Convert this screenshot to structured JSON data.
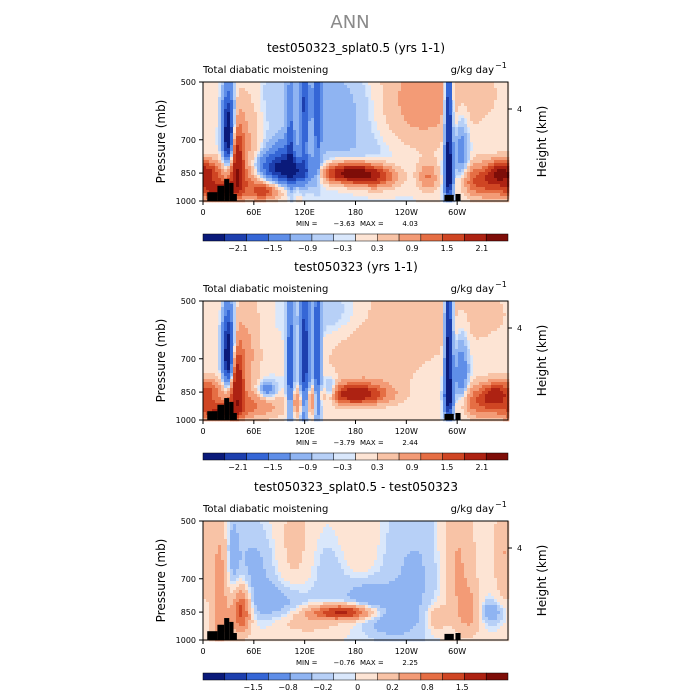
{
  "figure_title": "ANN",
  "chart_data": [
    {
      "type": "heatmap",
      "title": "test050323_splat0.5 (yrs 1-1)",
      "variable": "Total diabatic moistening",
      "units": "g/kg day",
      "units_exp": "−1",
      "ylabel": "Pressure (mb)",
      "y2label": "Height (km)",
      "y_ticks": [
        "500",
        "700",
        "850",
        "1000"
      ],
      "y2_ticks": [
        "4"
      ],
      "x_ticks": [
        "0",
        "60E",
        "120E",
        "180",
        "120W",
        "60W"
      ],
      "min_label": "MIN =",
      "min_value": "−3.63",
      "max_label": "MAX =",
      "max_value": "4.03",
      "colorbar_labels": [
        "−2.1",
        "−1.5",
        "−0.9",
        "−0.3",
        "0.3",
        "0.9",
        "1.5",
        "2.1"
      ],
      "colorbar_colors": [
        "#0a1a7a",
        "#1d3fae",
        "#3566d6",
        "#5f8ee8",
        "#8fb4f2",
        "#b7d0f7",
        "#d9e7fb",
        "#fde4d4",
        "#f8c3a6",
        "#f39b76",
        "#e56e44",
        "#cf4523",
        "#ad2212",
        "#7e0d08"
      ],
      "features": [
        {
          "lon": 105,
          "p": 845,
          "w": 20,
          "h": 45,
          "v": -2.4
        },
        {
          "lon": 290,
          "p": 640,
          "w": 3,
          "h": 220,
          "v": -2.9
        },
        {
          "lon": 290,
          "p": 870,
          "w": 4,
          "h": 70,
          "v": -2.0
        },
        {
          "lon": 175,
          "p": 850,
          "w": 25,
          "h": 35,
          "v": 2.9
        },
        {
          "lon": 40,
          "p": 790,
          "w": 6,
          "h": 120,
          "v": 2.1
        },
        {
          "lon": 17,
          "p": 940,
          "w": 16,
          "h": 40,
          "v": 1.7
        },
        {
          "lon": 330,
          "p": 890,
          "w": 22,
          "h": 60,
          "v": 1.5
        },
        {
          "lon": 72,
          "p": 950,
          "w": 10,
          "h": 30,
          "v": 1.1
        },
        {
          "lon": 350,
          "p": 850,
          "w": 10,
          "h": 40,
          "v": 1.6
        },
        {
          "lon": 245,
          "p": 620,
          "w": 40,
          "h": 140,
          "v": 0.7
        },
        {
          "lon": 60,
          "p": 900,
          "w": 30,
          "h": 60,
          "v": 0.8
        },
        {
          "lon": 30,
          "p": 630,
          "w": 5,
          "h": 90,
          "v": -2.5
        },
        {
          "lon": 30,
          "p": 720,
          "w": 4,
          "h": 60,
          "v": -1.8
        },
        {
          "lon": 120,
          "p": 580,
          "w": 3,
          "h": 160,
          "v": -1.6
        },
        {
          "lon": 135,
          "p": 600,
          "w": 3,
          "h": 160,
          "v": -1.4
        },
        {
          "lon": 103,
          "p": 720,
          "w": 3,
          "h": 140,
          "v": -1.3
        },
        {
          "lon": 95,
          "p": 780,
          "w": 12,
          "h": 60,
          "v": -1.2
        },
        {
          "lon": 75,
          "p": 820,
          "w": 12,
          "h": 50,
          "v": -0.9
        },
        {
          "lon": 205,
          "p": 880,
          "w": 18,
          "h": 40,
          "v": 1.0
        },
        {
          "lon": 8,
          "p": 840,
          "w": 10,
          "h": 40,
          "v": 1.2
        },
        {
          "lon": 265,
          "p": 870,
          "w": 8,
          "h": 50,
          "v": 0.9
        },
        {
          "lon": 305,
          "p": 770,
          "w": 6,
          "h": 120,
          "v": -1.0
        },
        {
          "lon": 250,
          "p": 540,
          "w": 80,
          "h": 100,
          "v": 0.4
        },
        {
          "lon": 160,
          "p": 540,
          "w": 60,
          "h": 80,
          "v": -0.5
        },
        {
          "lon": 200,
          "p": 700,
          "w": 60,
          "h": 130,
          "v": -0.5
        },
        {
          "lon": 55,
          "p": 720,
          "w": 10,
          "h": 160,
          "v": 0.5
        }
      ],
      "terrain": [
        {
          "lon0": 5,
          "lon1": 17,
          "p": 950
        },
        {
          "lon0": 17,
          "lon1": 25,
          "p": 915
        },
        {
          "lon0": 25,
          "lon1": 31,
          "p": 880
        },
        {
          "lon0": 31,
          "lon1": 36,
          "p": 900
        },
        {
          "lon0": 36,
          "lon1": 40,
          "p": 960
        },
        {
          "lon0": 285,
          "lon1": 296,
          "p": 965
        },
        {
          "lon0": 298,
          "lon1": 304,
          "p": 960
        }
      ]
    },
    {
      "type": "heatmap",
      "title": "test050323 (yrs 1-1)",
      "variable": "Total diabatic moistening",
      "units": "g/kg day",
      "units_exp": "−1",
      "ylabel": "Pressure (mb)",
      "y2label": "Height (km)",
      "y_ticks": [
        "500",
        "700",
        "850",
        "1000"
      ],
      "y2_ticks": [
        "4"
      ],
      "x_ticks": [
        "0",
        "60E",
        "120E",
        "180",
        "120W",
        "60W"
      ],
      "min_label": "MIN =",
      "min_value": "−3.79",
      "max_label": "MAX =",
      "max_value": "2.44",
      "colorbar_labels": [
        "−2.1",
        "−1.5",
        "−0.9",
        "−0.3",
        "0.3",
        "0.9",
        "1.5",
        "2.1"
      ],
      "colorbar_colors": [
        "#0a1a7a",
        "#1d3fae",
        "#3566d6",
        "#5f8ee8",
        "#8fb4f2",
        "#b7d0f7",
        "#d9e7fb",
        "#fde4d4",
        "#f8c3a6",
        "#f39b76",
        "#e56e44",
        "#cf4523",
        "#ad2212",
        "#7e0d08"
      ],
      "features": [
        {
          "lon": 120,
          "p": 700,
          "w": 4,
          "h": 200,
          "v": -2.3
        },
        {
          "lon": 135,
          "p": 700,
          "w": 3,
          "h": 200,
          "v": -2.0
        },
        {
          "lon": 103,
          "p": 720,
          "w": 3,
          "h": 180,
          "v": -1.8
        },
        {
          "lon": 290,
          "p": 640,
          "w": 3,
          "h": 220,
          "v": -3.0
        },
        {
          "lon": 290,
          "p": 880,
          "w": 4,
          "h": 60,
          "v": -2.0
        },
        {
          "lon": 180,
          "p": 860,
          "w": 25,
          "h": 35,
          "v": 2.2
        },
        {
          "lon": 40,
          "p": 800,
          "w": 6,
          "h": 120,
          "v": 2.2
        },
        {
          "lon": 17,
          "p": 950,
          "w": 16,
          "h": 40,
          "v": 1.6
        },
        {
          "lon": 330,
          "p": 900,
          "w": 22,
          "h": 60,
          "v": 1.3
        },
        {
          "lon": 30,
          "p": 630,
          "w": 5,
          "h": 90,
          "v": -2.6
        },
        {
          "lon": 30,
          "p": 730,
          "w": 4,
          "h": 60,
          "v": -1.8
        },
        {
          "lon": 150,
          "p": 845,
          "w": 6,
          "h": 40,
          "v": -1.2
        },
        {
          "lon": 75,
          "p": 840,
          "w": 8,
          "h": 30,
          "v": -1.0
        },
        {
          "lon": 250,
          "p": 540,
          "w": 90,
          "h": 100,
          "v": 0.4
        },
        {
          "lon": 200,
          "p": 700,
          "w": 40,
          "h": 140,
          "v": 0.4
        },
        {
          "lon": 160,
          "p": 540,
          "w": 40,
          "h": 70,
          "v": -0.5
        },
        {
          "lon": 55,
          "p": 700,
          "w": 10,
          "h": 160,
          "v": 0.5
        },
        {
          "lon": 8,
          "p": 840,
          "w": 10,
          "h": 40,
          "v": 1.1
        },
        {
          "lon": 60,
          "p": 920,
          "w": 25,
          "h": 50,
          "v": 0.8
        },
        {
          "lon": 345,
          "p": 860,
          "w": 10,
          "h": 40,
          "v": 1.4
        },
        {
          "lon": 305,
          "p": 770,
          "w": 6,
          "h": 120,
          "v": -1.1
        },
        {
          "lon": 112,
          "p": 900,
          "w": 5,
          "h": 50,
          "v": 0.9
        },
        {
          "lon": 128,
          "p": 910,
          "w": 5,
          "h": 50,
          "v": 0.9
        }
      ],
      "terrain": [
        {
          "lon0": 5,
          "lon1": 17,
          "p": 950
        },
        {
          "lon0": 17,
          "lon1": 25,
          "p": 915
        },
        {
          "lon0": 25,
          "lon1": 31,
          "p": 880
        },
        {
          "lon0": 31,
          "lon1": 36,
          "p": 900
        },
        {
          "lon0": 36,
          "lon1": 40,
          "p": 960
        },
        {
          "lon0": 285,
          "lon1": 296,
          "p": 965
        },
        {
          "lon0": 298,
          "lon1": 304,
          "p": 960
        }
      ]
    },
    {
      "type": "heatmap",
      "title": "test050323_splat0.5 - test050323",
      "variable": "Total diabatic moistening",
      "units": "g/kg day",
      "units_exp": "−1",
      "ylabel": "Pressure (mb)",
      "y2label": "Height (km)",
      "y_ticks": [
        "500",
        "700",
        "850",
        "1000"
      ],
      "y2_ticks": [
        "4"
      ],
      "x_ticks": [
        "0",
        "60E",
        "120E",
        "180",
        "120W",
        "60W"
      ],
      "min_label": "MIN =",
      "min_value": "−0.76",
      "max_label": "MAX =",
      "max_value": "2.25",
      "colorbar_labels": [
        "−1.5",
        "−0.8",
        "−0.2",
        "0",
        "0.2",
        "0.8",
        "1.5"
      ],
      "colorbar_colors": [
        "#0a1a7a",
        "#1d3fae",
        "#3566d6",
        "#5f8ee8",
        "#8fb4f2",
        "#b7d0f7",
        "#d9e7fb",
        "#fde4d4",
        "#f8c3a6",
        "#f39b76",
        "#e56e44",
        "#cf4523",
        "#ad2212",
        "#7e0d08"
      ],
      "features": [
        {
          "lon": 165,
          "p": 850,
          "w": 25,
          "h": 25,
          "v": 1.9
        },
        {
          "lon": 45,
          "p": 840,
          "w": 8,
          "h": 80,
          "v": 1.6
        },
        {
          "lon": 20,
          "p": 800,
          "w": 8,
          "h": 250,
          "v": 0.8
        },
        {
          "lon": 85,
          "p": 800,
          "w": 30,
          "h": 60,
          "v": -0.5
        },
        {
          "lon": 60,
          "p": 650,
          "w": 20,
          "h": 100,
          "v": -0.4
        },
        {
          "lon": 195,
          "p": 780,
          "w": 20,
          "h": 50,
          "v": -0.5
        },
        {
          "lon": 250,
          "p": 700,
          "w": 30,
          "h": 200,
          "v": -0.35
        },
        {
          "lon": 300,
          "p": 650,
          "w": 15,
          "h": 200,
          "v": 0.6
        },
        {
          "lon": 315,
          "p": 850,
          "w": 10,
          "h": 80,
          "v": 0.5
        },
        {
          "lon": 340,
          "p": 850,
          "w": 10,
          "h": 40,
          "v": -0.6
        },
        {
          "lon": 125,
          "p": 900,
          "w": 25,
          "h": 40,
          "v": 0.4
        },
        {
          "lon": 110,
          "p": 600,
          "w": 20,
          "h": 150,
          "v": 0.35
        },
        {
          "lon": 150,
          "p": 650,
          "w": 25,
          "h": 100,
          "v": -0.3
        },
        {
          "lon": 180,
          "p": 580,
          "w": 20,
          "h": 100,
          "v": 0.3
        },
        {
          "lon": 220,
          "p": 900,
          "w": 20,
          "h": 60,
          "v": -0.4
        },
        {
          "lon": 355,
          "p": 600,
          "w": 8,
          "h": 150,
          "v": 0.5
        },
        {
          "lon": 275,
          "p": 880,
          "w": 8,
          "h": 50,
          "v": 0.5
        },
        {
          "lon": 35,
          "p": 600,
          "w": 5,
          "h": 120,
          "v": -0.4
        }
      ],
      "terrain": [
        {
          "lon0": 5,
          "lon1": 17,
          "p": 950
        },
        {
          "lon0": 17,
          "lon1": 25,
          "p": 915
        },
        {
          "lon0": 25,
          "lon1": 31,
          "p": 880
        },
        {
          "lon0": 31,
          "lon1": 36,
          "p": 900
        },
        {
          "lon0": 36,
          "lon1": 40,
          "p": 960
        },
        {
          "lon0": 285,
          "lon1": 296,
          "p": 965
        },
        {
          "lon0": 298,
          "lon1": 304,
          "p": 960
        }
      ]
    }
  ]
}
